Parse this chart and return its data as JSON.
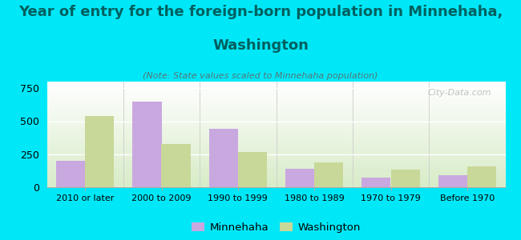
{
  "categories": [
    "2010 or later",
    "2000 to 2009",
    "1990 to 1999",
    "1980 to 1989",
    "1970 to 1979",
    "Before 1970"
  ],
  "minnehaha": [
    200,
    650,
    440,
    140,
    75,
    90
  ],
  "washington": [
    540,
    330,
    265,
    185,
    135,
    155
  ],
  "minnehaha_color": "#c9a8e0",
  "washington_color": "#c8d898",
  "title_line1": "Year of entry for the foreign-born population in Minnehaha,",
  "title_line2": "Washington",
  "note": "(Note: State values scaled to Minnehaha population)",
  "ylabel_ticks": [
    0,
    250,
    500,
    750
  ],
  "ylim": [
    0,
    800
  ],
  "background_color": "#00e8f8",
  "plot_bg_top": "#ffffff",
  "plot_bg_bottom": "#d8ecc8",
  "bar_width": 0.38,
  "legend_minnehaha": "Minnehaha",
  "legend_washington": "Washington",
  "watermark": "City-Data.com",
  "title_fontsize": 13,
  "note_fontsize": 8,
  "title_color": "#006060",
  "note_color": "#557777",
  "tick_label_fontsize": 8,
  "ytick_label_fontsize": 9
}
